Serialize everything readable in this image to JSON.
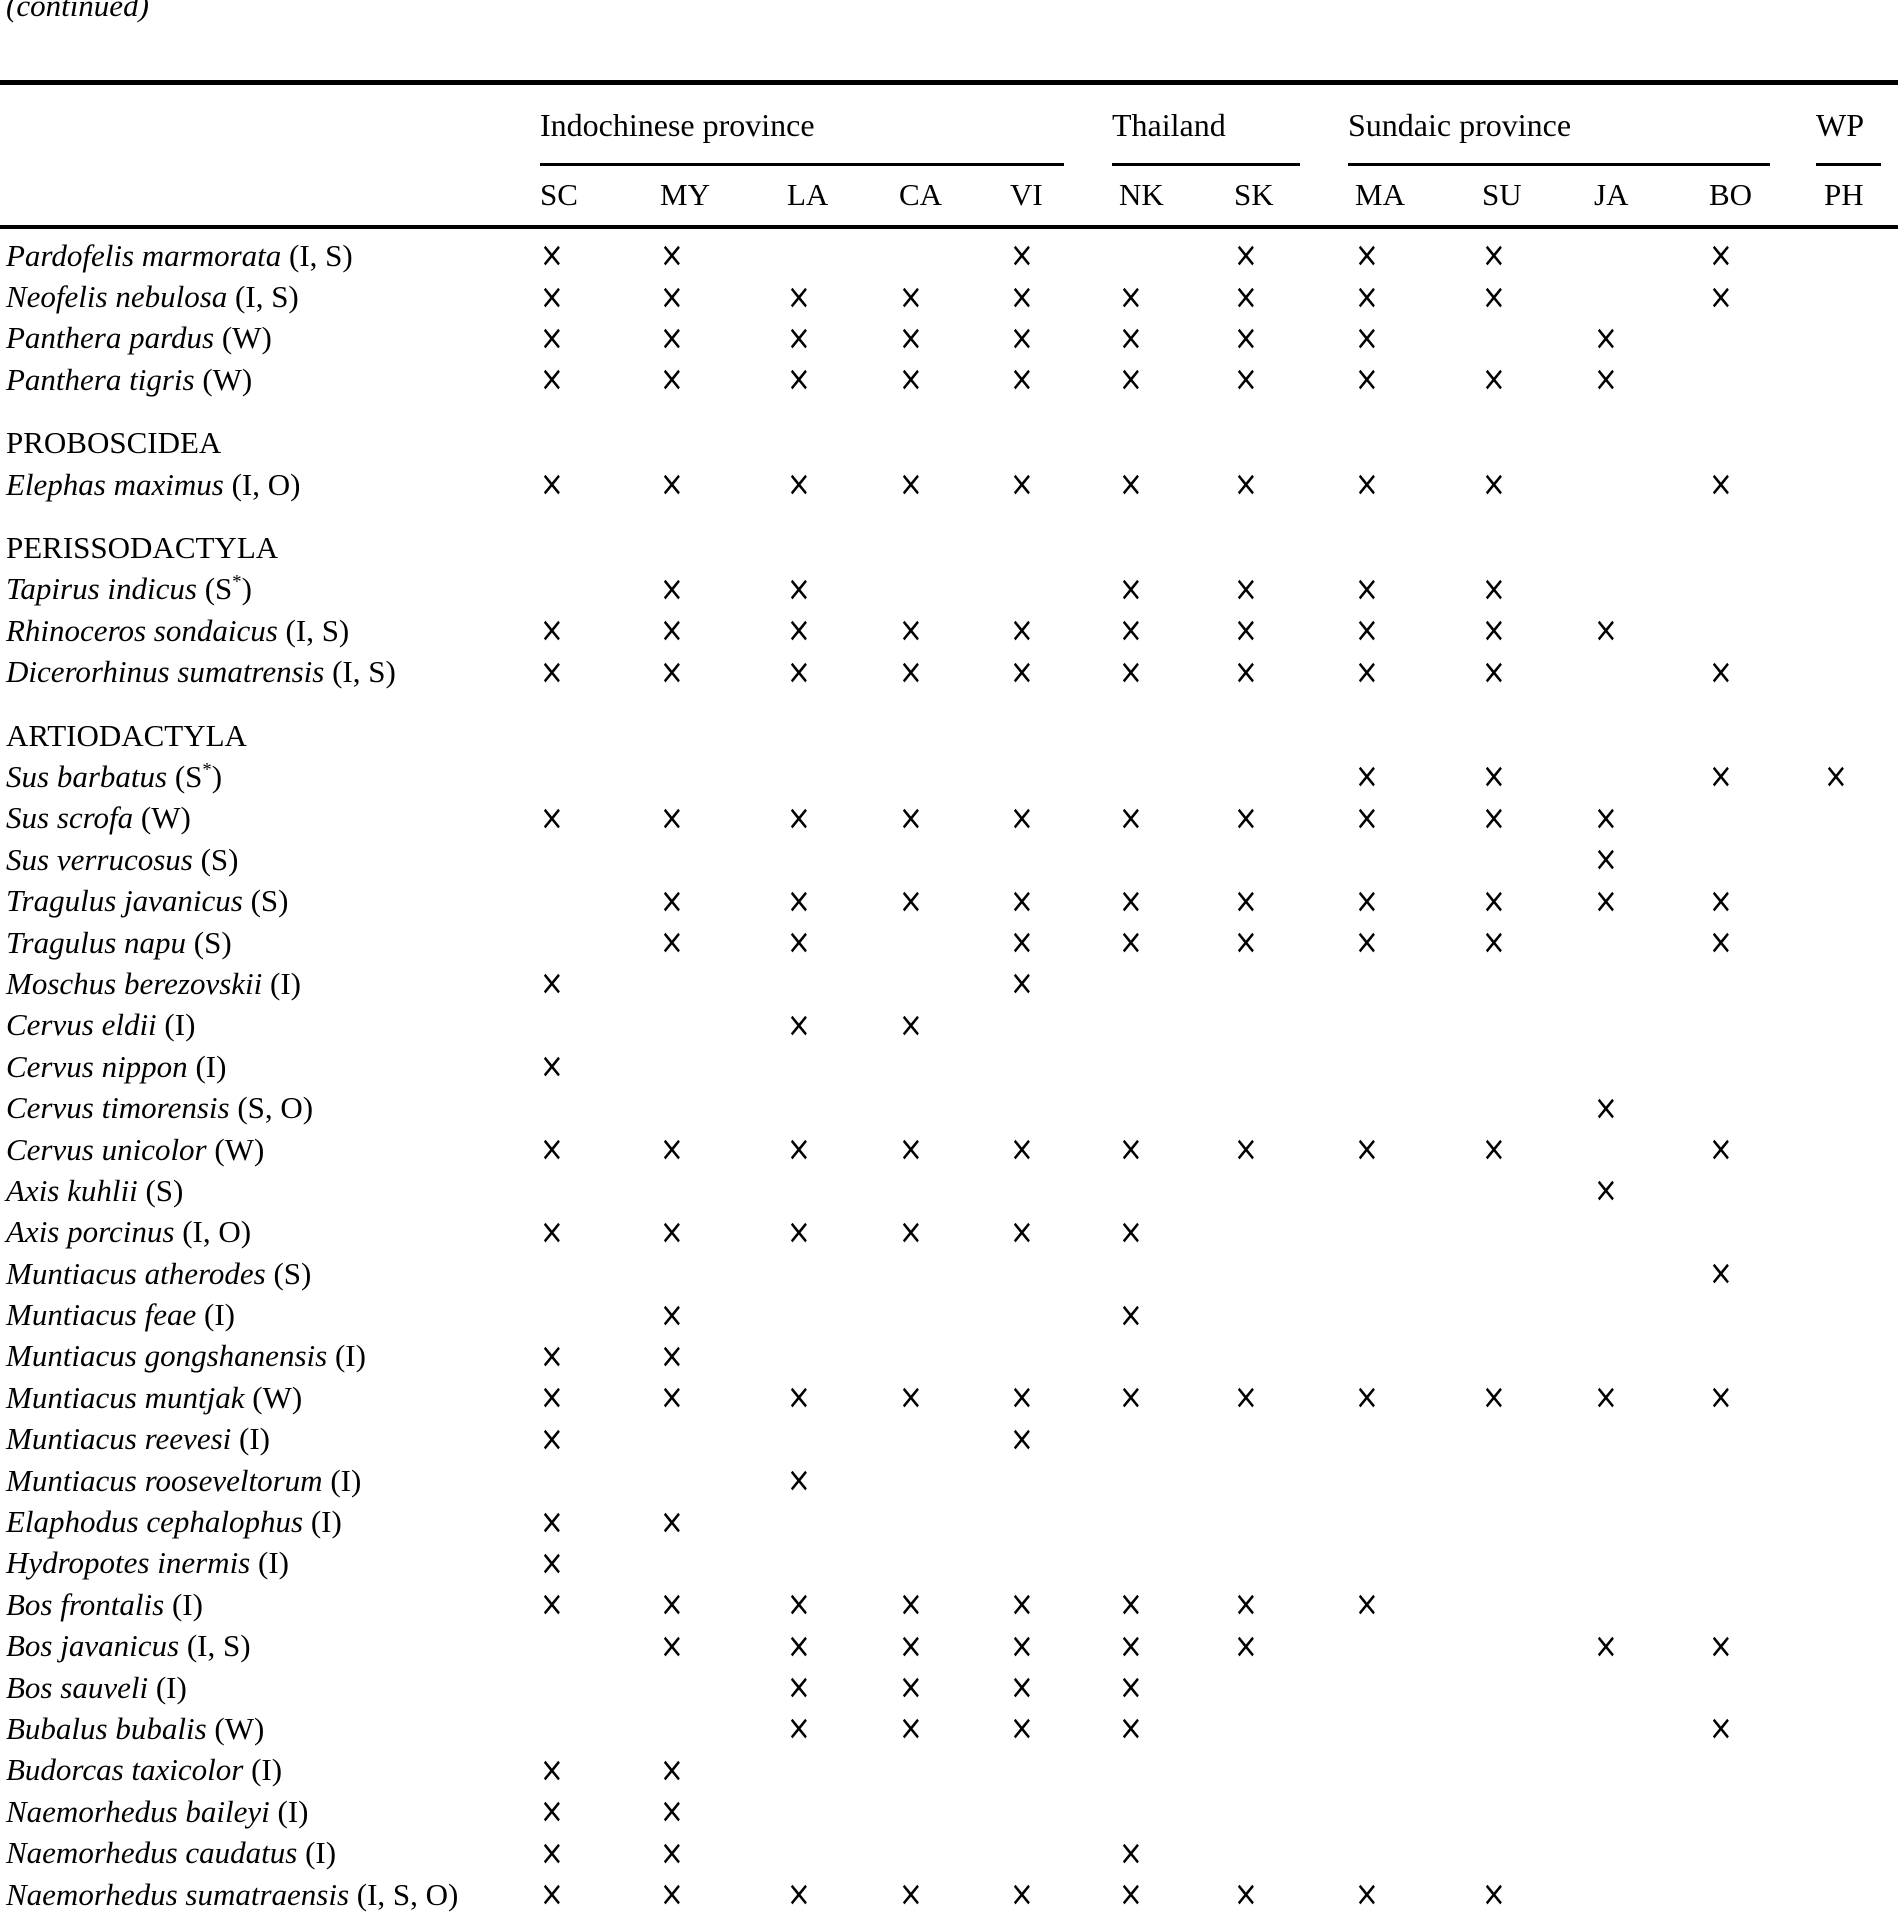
{
  "page": {
    "continued_label": "(continued)",
    "mark_glyph": "×",
    "text_color": "#000000",
    "background_color": "#ffffff"
  },
  "table": {
    "column_groups": [
      {
        "label": "Indochinese province",
        "columns": [
          "SC",
          "MY",
          "LA",
          "CA",
          "VI"
        ]
      },
      {
        "label": "Thailand",
        "columns": [
          "NK",
          "SK"
        ]
      },
      {
        "label": "Sundaic province",
        "columns": [
          "MA",
          "SU",
          "JA",
          "BO"
        ]
      },
      {
        "label": "WP",
        "columns": [
          "PH"
        ]
      }
    ],
    "columns": [
      "SC",
      "MY",
      "LA",
      "CA",
      "VI",
      "NK",
      "SK",
      "MA",
      "SU",
      "JA",
      "BO",
      "PH"
    ],
    "rows": [
      {
        "type": "species",
        "name": "Pardofelis marmorata",
        "tags": "(I, S)",
        "marks": [
          "SC",
          "MY",
          "VI",
          "SK",
          "MA",
          "SU",
          "BO"
        ]
      },
      {
        "type": "species",
        "name": "Neofelis nebulosa",
        "tags": "(I, S)",
        "marks": [
          "SC",
          "MY",
          "LA",
          "CA",
          "VI",
          "NK",
          "SK",
          "MA",
          "SU",
          "BO"
        ]
      },
      {
        "type": "species",
        "name": "Panthera pardus",
        "tags": "(W)",
        "marks": [
          "SC",
          "MY",
          "LA",
          "CA",
          "VI",
          "NK",
          "SK",
          "MA",
          "JA"
        ]
      },
      {
        "type": "species",
        "name": "Panthera tigris",
        "tags": "(W)",
        "marks": [
          "SC",
          "MY",
          "LA",
          "CA",
          "VI",
          "NK",
          "SK",
          "MA",
          "SU",
          "JA"
        ]
      },
      {
        "type": "section",
        "name": "PROBOSCIDEA"
      },
      {
        "type": "species",
        "name": "Elephas maximus",
        "tags": "(I, O)",
        "marks": [
          "SC",
          "MY",
          "LA",
          "CA",
          "VI",
          "NK",
          "SK",
          "MA",
          "SU",
          "BO"
        ]
      },
      {
        "type": "section",
        "name": "PERISSODACTYLA"
      },
      {
        "type": "species",
        "name": "Tapirus indicus",
        "tags": "(S*)",
        "marks": [
          "MY",
          "LA",
          "NK",
          "SK",
          "MA",
          "SU"
        ]
      },
      {
        "type": "species",
        "name": "Rhinoceros sondaicus",
        "tags": "(I, S)",
        "marks": [
          "SC",
          "MY",
          "LA",
          "CA",
          "VI",
          "NK",
          "SK",
          "MA",
          "SU",
          "JA"
        ]
      },
      {
        "type": "species",
        "name": "Dicerorhinus sumatrensis",
        "tags": "(I, S)",
        "marks": [
          "SC",
          "MY",
          "LA",
          "CA",
          "VI",
          "NK",
          "SK",
          "MA",
          "SU",
          "BO"
        ]
      },
      {
        "type": "section",
        "name": "ARTIODACTYLA"
      },
      {
        "type": "species",
        "name": "Sus barbatus",
        "tags": "(S*)",
        "marks": [
          "MA",
          "SU",
          "BO",
          "PH"
        ]
      },
      {
        "type": "species",
        "name": "Sus scrofa",
        "tags": "(W)",
        "marks": [
          "SC",
          "MY",
          "LA",
          "CA",
          "VI",
          "NK",
          "SK",
          "MA",
          "SU",
          "JA"
        ]
      },
      {
        "type": "species",
        "name": "Sus verrucosus",
        "tags": "(S)",
        "marks": [
          "JA"
        ]
      },
      {
        "type": "species",
        "name": "Tragulus javanicus",
        "tags": "(S)",
        "marks": [
          "MY",
          "LA",
          "CA",
          "VI",
          "NK",
          "SK",
          "MA",
          "SU",
          "JA",
          "BO"
        ]
      },
      {
        "type": "species",
        "name": "Tragulus napu",
        "tags": "(S)",
        "marks": [
          "MY",
          "LA",
          "VI",
          "NK",
          "SK",
          "MA",
          "SU",
          "BO"
        ]
      },
      {
        "type": "species",
        "name": "Moschus berezovskii",
        "tags": "(I)",
        "marks": [
          "SC",
          "VI"
        ]
      },
      {
        "type": "species",
        "name": "Cervus eldii",
        "tags": "(I)",
        "marks": [
          "LA",
          "CA"
        ]
      },
      {
        "type": "species",
        "name": "Cervus nippon",
        "tags": "(I)",
        "marks": [
          "SC"
        ]
      },
      {
        "type": "species",
        "name": "Cervus timorensis",
        "tags": "(S, O)",
        "marks": [
          "JA"
        ]
      },
      {
        "type": "species",
        "name": "Cervus unicolor",
        "tags": "(W)",
        "marks": [
          "SC",
          "MY",
          "LA",
          "CA",
          "VI",
          "NK",
          "SK",
          "MA",
          "SU",
          "BO"
        ]
      },
      {
        "type": "species",
        "name": "Axis kuhlii",
        "tags": "(S)",
        "marks": [
          "JA"
        ]
      },
      {
        "type": "species",
        "name": "Axis porcinus",
        "tags": "(I, O)",
        "marks": [
          "SC",
          "MY",
          "LA",
          "CA",
          "VI",
          "NK"
        ]
      },
      {
        "type": "species",
        "name": "Muntiacus atherodes",
        "tags": "(S)",
        "marks": [
          "BO"
        ]
      },
      {
        "type": "species",
        "name": "Muntiacus feae",
        "tags": "(I)",
        "marks": [
          "MY",
          "NK"
        ]
      },
      {
        "type": "species",
        "name": "Muntiacus gongshanensis",
        "tags": "(I)",
        "marks": [
          "SC",
          "MY"
        ]
      },
      {
        "type": "species",
        "name": "Muntiacus muntjak",
        "tags": "(W)",
        "marks": [
          "SC",
          "MY",
          "LA",
          "CA",
          "VI",
          "NK",
          "SK",
          "MA",
          "SU",
          "JA",
          "BO"
        ]
      },
      {
        "type": "species",
        "name": "Muntiacus reevesi",
        "tags": "(I)",
        "marks": [
          "SC",
          "VI"
        ]
      },
      {
        "type": "species",
        "name": "Muntiacus rooseveltorum",
        "tags": "(I)",
        "marks": [
          "LA"
        ]
      },
      {
        "type": "species",
        "name": "Elaphodus cephalophus",
        "tags": "(I)",
        "marks": [
          "SC",
          "MY"
        ]
      },
      {
        "type": "species",
        "name": "Hydropotes inermis",
        "tags": "(I)",
        "marks": [
          "SC"
        ]
      },
      {
        "type": "species",
        "name": "Bos frontalis",
        "tags": "(I)",
        "marks": [
          "SC",
          "MY",
          "LA",
          "CA",
          "VI",
          "NK",
          "SK",
          "MA"
        ]
      },
      {
        "type": "species",
        "name": "Bos javanicus",
        "tags": "(I, S)",
        "marks": [
          "MY",
          "LA",
          "CA",
          "VI",
          "NK",
          "SK",
          "JA",
          "BO"
        ]
      },
      {
        "type": "species",
        "name": "Bos sauveli",
        "tags": "(I)",
        "marks": [
          "LA",
          "CA",
          "VI",
          "NK"
        ]
      },
      {
        "type": "species",
        "name": "Bubalus bubalis",
        "tags": "(W)",
        "marks": [
          "LA",
          "CA",
          "VI",
          "NK",
          "BO"
        ]
      },
      {
        "type": "species",
        "name": "Budorcas taxicolor",
        "tags": "(I)",
        "marks": [
          "SC",
          "MY"
        ]
      },
      {
        "type": "species",
        "name": "Naemorhedus baileyi",
        "tags": "(I)",
        "marks": [
          "SC",
          "MY"
        ]
      },
      {
        "type": "species",
        "name": "Naemorhedus caudatus",
        "tags": "(I)",
        "marks": [
          "SC",
          "MY",
          "NK"
        ]
      },
      {
        "type": "species",
        "name": "Naemorhedus sumatraensis",
        "tags": "(I, S, O)",
        "marks": [
          "SC",
          "MY",
          "LA",
          "CA",
          "VI",
          "NK",
          "SK",
          "MA",
          "SU"
        ]
      }
    ]
  }
}
